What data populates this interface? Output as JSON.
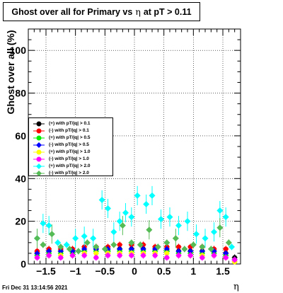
{
  "title": {
    "prefix": "Ghost over all for Primary vs",
    "symbol": "η",
    "suffix": "at pT > 0.11"
  },
  "footer": "Fri Dec 31 13:14:56 2021",
  "chart_data": {
    "type": "scatter",
    "title": "Ghost over all for Primary vs η at pT > 0.11",
    "xlabel": "η",
    "ylabel": "Ghost over all (%)",
    "xlim": [
      -1.8,
      1.8
    ],
    "ylim": [
      0,
      110
    ],
    "xticks": [
      "−1.5",
      "−1",
      "−0.5",
      "0",
      "0.5",
      "1",
      "1.5"
    ],
    "xtick_values": [
      -1.5,
      -1,
      -0.5,
      0,
      0.5,
      1,
      1.5
    ],
    "yticks": [
      "0",
      "20",
      "40",
      "60",
      "80",
      "100"
    ],
    "ytick_values": [
      0,
      20,
      40,
      60,
      80,
      100
    ],
    "grid": true,
    "legend_position": "left",
    "series": [
      {
        "name": "(+) with pT/|q| > 0.1",
        "color": "#000000",
        "x": [
          -1.65,
          -1.45,
          -1.25,
          -1.05,
          -0.85,
          -0.65,
          -0.45,
          -0.25,
          -0.05,
          0.15,
          0.35,
          0.55,
          0.75,
          0.95,
          1.15,
          1.35,
          1.55,
          1.7
        ],
        "y": [
          5,
          6,
          6,
          6,
          6,
          7,
          6,
          7,
          7,
          7,
          6,
          6,
          6,
          6,
          6,
          6,
          5,
          3
        ]
      },
      {
        "name": "(-) with pT/|q| > 0.1",
        "color": "#ff0000",
        "x": [
          -1.65,
          -1.45,
          -1.25,
          -1.05,
          -0.85,
          -0.65,
          -0.45,
          -0.25,
          -0.05,
          0.15,
          0.35,
          0.55,
          0.75,
          0.95,
          1.15,
          1.35,
          1.55,
          1.7
        ],
        "y": [
          6,
          7,
          7,
          7,
          8,
          8,
          8,
          9,
          9,
          9,
          8,
          8,
          8,
          8,
          8,
          7,
          7,
          1
        ]
      },
      {
        "name": "(+) with pT/|q| > 0.5",
        "color": "#00ee00",
        "x": [
          -1.65,
          -1.45,
          -1.25,
          -1.05,
          -0.85,
          -0.65,
          -0.45,
          -0.25,
          -0.05,
          0.15,
          0.35,
          0.55,
          0.75,
          0.95,
          1.15,
          1.35,
          1.55,
          1.7
        ],
        "y": [
          4,
          5,
          5,
          5,
          6,
          6,
          6,
          6,
          6,
          6,
          6,
          6,
          5,
          5,
          5,
          5,
          4,
          2
        ]
      },
      {
        "name": "(-) with pT/|q| > 0.5",
        "color": "#0000ff",
        "x": [
          -1.65,
          -1.45,
          -1.25,
          -1.05,
          -0.85,
          -0.65,
          -0.45,
          -0.25,
          -0.05,
          0.15,
          0.35,
          0.55,
          0.75,
          0.95,
          1.15,
          1.35,
          1.55,
          1.7
        ],
        "y": [
          5,
          6,
          6,
          6,
          7,
          7,
          7,
          7,
          7,
          7,
          7,
          7,
          6,
          6,
          6,
          6,
          5,
          2
        ]
      },
      {
        "name": "(+) with pT/|q| > 1.0",
        "color": "#ffff00",
        "x": [
          -1.65,
          -1.45,
          -1.25,
          -1.05,
          -0.85,
          -0.65,
          -0.45,
          -0.25,
          -0.05,
          0.15,
          0.35,
          0.55,
          0.75,
          0.95,
          1.15,
          1.35,
          1.55,
          1.7
        ],
        "y": [
          3,
          4,
          4,
          4,
          5,
          5,
          5,
          5,
          5,
          5,
          5,
          5,
          4,
          4,
          4,
          4,
          3,
          1
        ]
      },
      {
        "name": "(-) with pT/|q| > 1.0",
        "color": "#ff00ff",
        "x": [
          -1.65,
          -1.45,
          -1.25,
          -1.05,
          -0.85,
          -0.65,
          -0.45,
          -0.25,
          -0.05,
          0.15,
          0.35,
          0.55,
          0.75,
          0.95,
          1.15,
          1.35,
          1.55,
          1.7
        ],
        "y": [
          3,
          4,
          3,
          4,
          4,
          3,
          4,
          4,
          4,
          4,
          4,
          3,
          4,
          4,
          3,
          4,
          3,
          2
        ]
      },
      {
        "name": "(+) with pT/|q| > 2.0",
        "color": "#00ffff",
        "x": [
          -1.65,
          -1.55,
          -1.45,
          -1.3,
          -1.15,
          -1.0,
          -0.85,
          -0.7,
          -0.55,
          -0.45,
          -0.35,
          -0.25,
          -0.15,
          -0.05,
          0.05,
          0.2,
          0.3,
          0.45,
          0.6,
          0.75,
          0.9,
          1.05,
          1.2,
          1.35,
          1.45,
          1.55,
          1.65
        ],
        "y": [
          12,
          19,
          18,
          10,
          9,
          12,
          13,
          12,
          30,
          26,
          15,
          20,
          24,
          22,
          32,
          28,
          32,
          21,
          22,
          18,
          20,
          14,
          12,
          15,
          25,
          22,
          8
        ]
      },
      {
        "name": "(-) with pT/|q| > 2.0",
        "color": "#55bb55",
        "x": [
          -1.65,
          -1.55,
          -1.4,
          -1.25,
          -1.1,
          -0.95,
          -0.8,
          -0.65,
          -0.5,
          -0.35,
          -0.2,
          -0.05,
          0.1,
          0.25,
          0.4,
          0.55,
          0.7,
          0.85,
          1.0,
          1.15,
          1.3,
          1.45,
          1.6
        ],
        "y": [
          12,
          9,
          14,
          8,
          7,
          6,
          10,
          8,
          7,
          9,
          18,
          10,
          9,
          16,
          8,
          10,
          12,
          7,
          9,
          8,
          7,
          17,
          10
        ]
      }
    ]
  }
}
